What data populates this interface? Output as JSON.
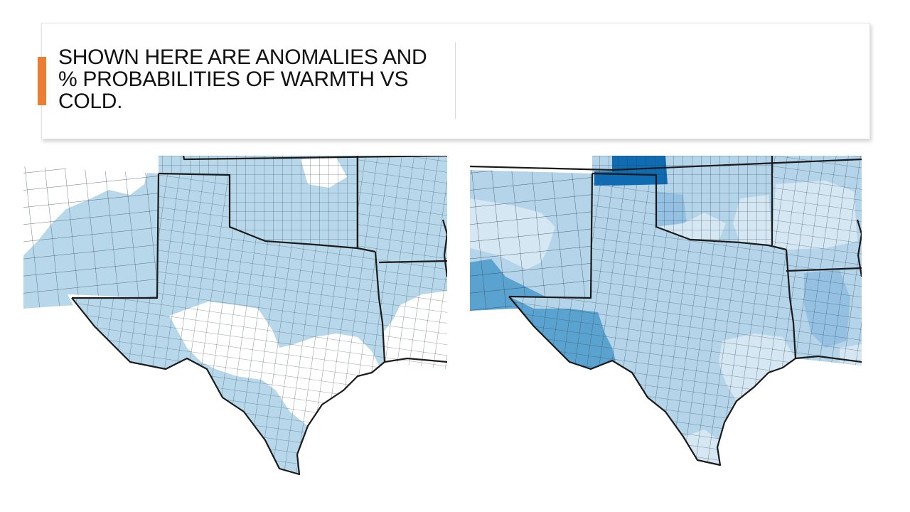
{
  "slide": {
    "title": "SHOWN HERE ARE ANOMALIES AND % PROBABILITIES OF WARMTH VS COLD.",
    "accent_color": "#ED7D31"
  },
  "maps": {
    "left": {
      "fill_colors": {
        "light_blue": "#B7D8EB",
        "none": "#FFFFFF"
      },
      "boundary_color": "#1A1A1A"
    },
    "right": {
      "fill_colors": {
        "very_light": "#D5E7F3",
        "light": "#B4D4EA",
        "medium": "#94C1E2",
        "strong": "#5AA3D0",
        "darkest": "#0F6CB3"
      },
      "boundary_color": "#1A1A1A"
    }
  }
}
